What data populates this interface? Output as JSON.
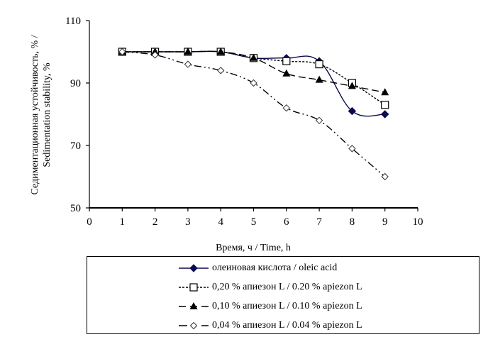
{
  "chart_data": {
    "type": "line",
    "title": "",
    "xlabel": "Время, ч / Time, h",
    "ylabel_line1": "Седиментационная устойчивость, % /",
    "ylabel_line2": "Sedimentation stability, %",
    "xlim": [
      0,
      10
    ],
    "ylim": [
      50,
      110
    ],
    "xticks": [
      0,
      1,
      2,
      3,
      4,
      5,
      6,
      7,
      8,
      9,
      10
    ],
    "yticks": [
      50,
      70,
      90,
      110
    ],
    "grid": false,
    "legend_position": "bottom",
    "x": [
      1,
      2,
      3,
      4,
      5,
      6,
      7,
      8,
      9
    ],
    "series": [
      {
        "name": "олеиновая кислота / oleic acid",
        "marker": "filled-diamond",
        "line_style": "solid",
        "color": "#0a0a50",
        "smooth": true,
        "values": [
          100,
          100,
          100,
          100,
          98,
          98,
          97,
          81,
          80
        ]
      },
      {
        "name": "0,20 % апиезон L / 0.20 % apiezon L",
        "marker": "open-square",
        "line_style": "dotted",
        "color": "#000000",
        "smooth": true,
        "values": [
          100,
          100,
          100,
          100,
          98,
          97,
          96,
          90,
          83
        ]
      },
      {
        "name": "0,10 % апиезон L / 0.10 % apiezon L",
        "marker": "filled-triangle",
        "line_style": "dashed",
        "color": "#000000",
        "smooth": true,
        "values": [
          100,
          100,
          100,
          100,
          98,
          93,
          91,
          89,
          87
        ]
      },
      {
        "name": "0,04 % апиезон L / 0.04 % apiezon L",
        "marker": "open-diamond",
        "line_style": "dash-dot-dot",
        "color": "#000000",
        "smooth": true,
        "values": [
          100,
          99,
          96,
          94,
          90,
          82,
          78,
          69,
          60
        ]
      }
    ]
  }
}
